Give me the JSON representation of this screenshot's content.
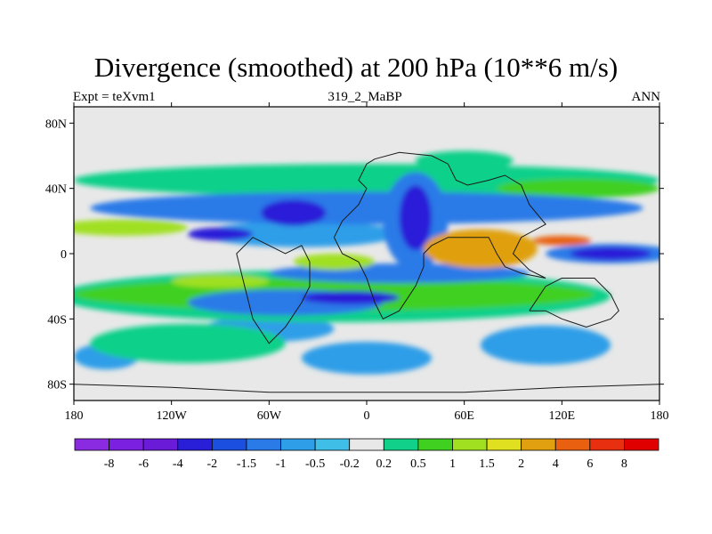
{
  "chart_data": {
    "type": "heatmap",
    "title": "Divergence (smoothed) at 200 hPa (10**6 m/s)",
    "subtitle_left": "Expt = teXvm1",
    "subtitle_center": "319_2_MaBP",
    "subtitle_right": "ANN",
    "xlabel": "",
    "ylabel": "",
    "xlim": [
      -180,
      180
    ],
    "ylim": [
      -90,
      90
    ],
    "x_ticks": [
      {
        "value": -180,
        "label": "180"
      },
      {
        "value": -120,
        "label": "120W"
      },
      {
        "value": -60,
        "label": "60W"
      },
      {
        "value": 0,
        "label": "0"
      },
      {
        "value": 60,
        "label": "60E"
      },
      {
        "value": 120,
        "label": "120E"
      },
      {
        "value": 180,
        "label": "180"
      }
    ],
    "y_ticks": [
      {
        "value": 80,
        "label": "80N"
      },
      {
        "value": 40,
        "label": "40N"
      },
      {
        "value": 0,
        "label": "0"
      },
      {
        "value": -40,
        "label": "40S"
      },
      {
        "value": -80,
        "label": "80S"
      }
    ],
    "colorbar": {
      "colors": [
        "#8a2be2",
        "#7b1fe0",
        "#6a1bd8",
        "#2a1fd8",
        "#1a4fe0",
        "#2a7ae8",
        "#2f9ee8",
        "#3fbfe8",
        "#e8e8e8",
        "#10d08a",
        "#40d020",
        "#a0e020",
        "#e0e020",
        "#e0a010",
        "#e86010",
        "#e83010",
        "#e00000"
      ],
      "labels": [
        "-8",
        "-6",
        "-4",
        "-2",
        "-1.5",
        "-1",
        "-0.5",
        "-0.2",
        "0.2",
        "0.5",
        "1",
        "1.5",
        "2",
        "4",
        "6",
        "8"
      ]
    },
    "fields": [
      {
        "level": "-0.5",
        "color": "#2f9ee8",
        "cx": -60,
        "cy": -46,
        "rx": 40,
        "ry": 8
      },
      {
        "level": "-0.5",
        "color": "#2f9ee8",
        "cx": 0,
        "cy": -64,
        "rx": 40,
        "ry": 10
      },
      {
        "level": "-0.5",
        "color": "#2f9ee8",
        "cx": 110,
        "cy": -56,
        "rx": 40,
        "ry": 12
      },
      {
        "level": "-0.5",
        "color": "#2f9ee8",
        "cx": -160,
        "cy": -63,
        "rx": 20,
        "ry": 8
      },
      {
        "level": "-0.5",
        "color": "#2f9ee8",
        "cx": -40,
        "cy": 12,
        "rx": 60,
        "ry": 8
      },
      {
        "level": "0.5",
        "color": "#10d08a",
        "cx": 0,
        "cy": 45,
        "rx": 180,
        "ry": 10
      },
      {
        "level": "0.5",
        "color": "#10d08a",
        "cx": 60,
        "cy": 57,
        "rx": 30,
        "ry": 6
      },
      {
        "level": "0.5",
        "color": "#10d08a",
        "cx": -20,
        "cy": -26,
        "rx": 170,
        "ry": 16
      },
      {
        "level": "0.5",
        "color": "#10d08a",
        "cx": -110,
        "cy": -55,
        "rx": 60,
        "ry": 12
      },
      {
        "level": "1",
        "color": "#40d020",
        "cx": -20,
        "cy": -25,
        "rx": 160,
        "ry": 10
      },
      {
        "level": "1",
        "color": "#40d020",
        "cx": 130,
        "cy": 40,
        "rx": 50,
        "ry": 6
      },
      {
        "level": "-1",
        "color": "#2a7ae8",
        "cx": 0,
        "cy": 28,
        "rx": 170,
        "ry": 10
      },
      {
        "level": "-1",
        "color": "#2a7ae8",
        "cx": 20,
        "cy": -12,
        "rx": 80,
        "ry": 6
      },
      {
        "level": "-1",
        "color": "#2a7ae8",
        "cx": 150,
        "cy": 0,
        "rx": 40,
        "ry": 6
      },
      {
        "level": "-1",
        "color": "#2a7ae8",
        "cx": 30,
        "cy": 20,
        "rx": 20,
        "ry": 30
      },
      {
        "level": "-1",
        "color": "#2a7ae8",
        "cx": -50,
        "cy": -30,
        "rx": 60,
        "ry": 8
      },
      {
        "level": "-2",
        "color": "#2a1fd8",
        "cx": -45,
        "cy": 25,
        "rx": 20,
        "ry": 8
      },
      {
        "level": "-2",
        "color": "#2a1fd8",
        "cx": 30,
        "cy": 22,
        "rx": 10,
        "ry": 20
      },
      {
        "level": "-2",
        "color": "#2a1fd8",
        "cx": -90,
        "cy": 12,
        "rx": 20,
        "ry": 4
      },
      {
        "level": "-2",
        "color": "#2a1fd8",
        "cx": 150,
        "cy": 0,
        "rx": 25,
        "ry": 4
      },
      {
        "level": "-2",
        "color": "#2a1fd8",
        "cx": -10,
        "cy": -27,
        "rx": 30,
        "ry": 4
      },
      {
        "level": "1.5",
        "color": "#a0e020",
        "cx": -150,
        "cy": 16,
        "rx": 40,
        "ry": 5
      },
      {
        "level": "1.5",
        "color": "#a0e020",
        "cx": -20,
        "cy": -5,
        "rx": 25,
        "ry": 5
      },
      {
        "level": "1.5",
        "color": "#a0e020",
        "cx": -90,
        "cy": -17,
        "rx": 30,
        "ry": 4
      },
      {
        "level": "2",
        "color": "#e0a010",
        "cx": 70,
        "cy": 3,
        "rx": 35,
        "ry": 12
      },
      {
        "level": "4",
        "color": "#e86010",
        "cx": 120,
        "cy": 8,
        "rx": 18,
        "ry": 3
      }
    ],
    "land_outlines": [
      [
        [
          5,
          58
        ],
        [
          20,
          62
        ],
        [
          40,
          60
        ],
        [
          50,
          55
        ],
        [
          55,
          45
        ],
        [
          62,
          42
        ],
        [
          75,
          45
        ],
        [
          85,
          48
        ],
        [
          95,
          42
        ],
        [
          100,
          30
        ],
        [
          110,
          18
        ],
        [
          95,
          10
        ],
        [
          90,
          0
        ],
        [
          95,
          -5
        ],
        [
          100,
          -10
        ],
        [
          110,
          -15
        ],
        [
          95,
          -12
        ],
        [
          85,
          -8
        ],
        [
          80,
          0
        ],
        [
          75,
          10
        ],
        [
          60,
          10
        ],
        [
          50,
          10
        ],
        [
          40,
          5
        ],
        [
          35,
          0
        ],
        [
          35,
          -8
        ],
        [
          30,
          -20
        ],
        [
          20,
          -35
        ],
        [
          10,
          -40
        ],
        [
          5,
          -30
        ],
        [
          0,
          -15
        ],
        [
          -5,
          -5
        ],
        [
          -15,
          0
        ],
        [
          -20,
          10
        ],
        [
          -15,
          20
        ],
        [
          -5,
          30
        ],
        [
          0,
          40
        ],
        [
          -5,
          45
        ],
        [
          0,
          55
        ],
        [
          5,
          58
        ]
      ],
      [
        [
          -35,
          -5
        ],
        [
          -40,
          5
        ],
        [
          -50,
          0
        ],
        [
          -60,
          5
        ],
        [
          -70,
          10
        ],
        [
          -80,
          0
        ],
        [
          -75,
          -20
        ],
        [
          -70,
          -40
        ],
        [
          -60,
          -55
        ],
        [
          -50,
          -45
        ],
        [
          -40,
          -30
        ],
        [
          -35,
          -20
        ],
        [
          -35,
          -5
        ]
      ],
      [
        [
          100,
          -35
        ],
        [
          110,
          -20
        ],
        [
          120,
          -15
        ],
        [
          140,
          -15
        ],
        [
          150,
          -25
        ],
        [
          155,
          -35
        ],
        [
          150,
          -40
        ],
        [
          135,
          -45
        ],
        [
          120,
          -40
        ],
        [
          110,
          -35
        ],
        [
          100,
          -35
        ]
      ],
      [
        [
          -180,
          -80
        ],
        [
          -120,
          -82
        ],
        [
          -60,
          -85
        ],
        [
          0,
          -85
        ],
        [
          60,
          -85
        ],
        [
          120,
          -82
        ],
        [
          180,
          -80
        ]
      ]
    ]
  }
}
